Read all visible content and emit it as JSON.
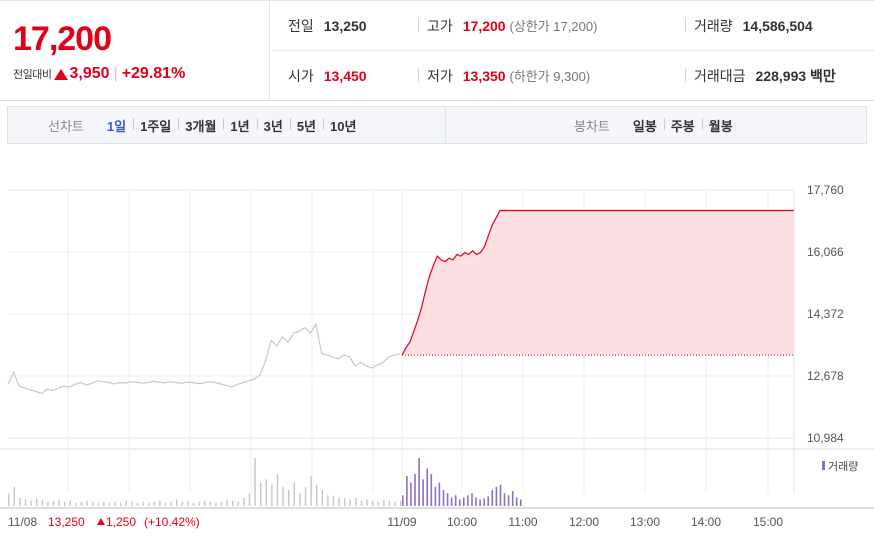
{
  "summary": {
    "current_price": "17,200",
    "change_label": "전일대비",
    "change_amount": "3,950",
    "change_rate": "+29.81%",
    "prev_close_label": "전일",
    "prev_close": "13,250",
    "open_label": "시가",
    "open": "13,450",
    "high_label": "고가",
    "high": "17,200",
    "upper_limit": "(상한가 17,200)",
    "low_label": "저가",
    "low": "13,350",
    "lower_limit": "(하한가 9,300)",
    "volume_label": "거래량",
    "volume": "14,586,504",
    "amount_label": "거래대금",
    "amount": "228,993",
    "amount_unit": "백만"
  },
  "colors": {
    "up": "#e0001a",
    "accent": "#3a5bb4",
    "volume_prev": "#c6c6c6",
    "volume_today": "#8d71c4"
  },
  "tabs": {
    "line_title": "선차트",
    "line": [
      "1일",
      "1주일",
      "3개월",
      "1년",
      "3년",
      "5년",
      "10년"
    ],
    "line_active": 0,
    "candle_title": "봉차트",
    "candle": [
      "일봉",
      "주봉",
      "월봉"
    ]
  },
  "chart_data": {
    "type": "line",
    "y_ticks": [
      "17,760",
      "16,066",
      "14,372",
      "12,678",
      "10,984"
    ],
    "ylim": [
      10984,
      17760
    ],
    "x_ticks": [
      "11/08",
      "11/09",
      "10:00",
      "11:00",
      "12:00",
      "13:00",
      "14:00",
      "15:00"
    ],
    "prev_day_label": "11/08",
    "prev_day_close": "13,250",
    "prev_day_change": "1,250",
    "prev_day_rate": "(+10.42%)",
    "volume_legend": "거래량",
    "today_close": 17200,
    "baseline": 13250,
    "prev_series": [
      12450,
      12780,
      12400,
      12350,
      12300,
      12250,
      12200,
      12320,
      12280,
      12350,
      12400,
      12380,
      12450,
      12500,
      12430,
      12480,
      12550,
      12520,
      12500,
      12460,
      12500,
      12490,
      12520,
      12510,
      12480,
      12500,
      12530,
      12510,
      12490,
      12520,
      12500,
      12480,
      12510,
      12500,
      12470,
      12490,
      12520,
      12500,
      12460,
      12420,
      12380,
      12450,
      12500,
      12550,
      12600,
      12700,
      13100,
      13650,
      13500,
      13750,
      13600,
      13850,
      13900,
      14000,
      13850,
      14100,
      13300,
      13250,
      13200,
      13150,
      13250,
      13200,
      12950,
      13050,
      12950,
      12900,
      12980,
      13050,
      13200,
      13250,
      13280
    ],
    "today_series": [
      13250,
      13450,
      13600,
      13900,
      14200,
      14550,
      15000,
      15400,
      15700,
      15950,
      15850,
      15800,
      15900,
      15850,
      16000,
      15950,
      16050,
      16000,
      16100,
      16000,
      16050,
      16200,
      16500,
      16800,
      17000,
      17200,
      17200,
      17200,
      17200,
      17200,
      17200,
      17200,
      17200,
      17200,
      17200,
      17200,
      17200,
      17200,
      17200,
      17200,
      17200,
      17200,
      17200,
      17200,
      17200,
      17200,
      17200,
      17200,
      17200,
      17200,
      17200,
      17200,
      17200,
      17200,
      17200,
      17200,
      17200,
      17200,
      17200,
      17200,
      17200,
      17200,
      17200,
      17200,
      17200,
      17200,
      17200,
      17200,
      17200,
      17200,
      17200,
      17200,
      17200,
      17200,
      17200,
      17200,
      17200,
      17200,
      17200,
      17200,
      17200,
      17200,
      17200,
      17200,
      17200,
      17200,
      17200,
      17200,
      17200,
      17200,
      17200,
      17200,
      17200,
      17200,
      17200,
      17200,
      17200,
      17200,
      17200,
      17200,
      17200
    ],
    "prev_volume": [
      12,
      18,
      8,
      6,
      5,
      7,
      6,
      4,
      5,
      6,
      4,
      5,
      3,
      4,
      5,
      4,
      3,
      4,
      3,
      4,
      3,
      5,
      4,
      3,
      4,
      3,
      4,
      5,
      3,
      4,
      6,
      4,
      5,
      3,
      4,
      5,
      4,
      3,
      4,
      6,
      5,
      4,
      8,
      12,
      45,
      22,
      25,
      20,
      30,
      18,
      15,
      22,
      12,
      18,
      28,
      20,
      15,
      10,
      9,
      8,
      7,
      6,
      8,
      5,
      6,
      5,
      4,
      6,
      5,
      4,
      5
    ],
    "today_volume": [
      10,
      28,
      22,
      30,
      45,
      25,
      35,
      30,
      18,
      22,
      15,
      12,
      8,
      10,
      6,
      8,
      10,
      12,
      8,
      6,
      7,
      9,
      15,
      18,
      20,
      12,
      10,
      14,
      8,
      6
    ]
  }
}
